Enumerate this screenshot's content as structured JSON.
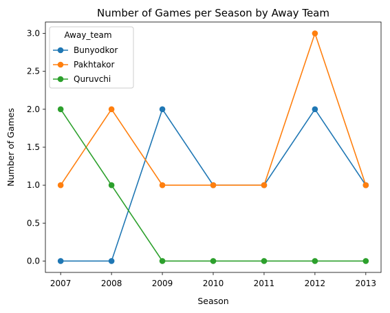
{
  "chart_data": {
    "type": "line",
    "title": "Number of Games per Season by Away Team",
    "xlabel": "Season",
    "ylabel": "Number of Games",
    "x": [
      2007,
      2008,
      2009,
      2010,
      2011,
      2012,
      2013
    ],
    "xlim": [
      2006.7,
      2013.3
    ],
    "ylim": [
      -0.15,
      3.15
    ],
    "yticks": [
      0.0,
      0.5,
      1.0,
      1.5,
      2.0,
      2.5,
      3.0
    ],
    "ytick_labels": [
      "0.0",
      "0.5",
      "1.0",
      "1.5",
      "2.0",
      "2.5",
      "3.0"
    ],
    "xtick_labels": [
      "2007",
      "2008",
      "2009",
      "2010",
      "2011",
      "2012",
      "2013"
    ],
    "grid": false,
    "legend": {
      "title": "Away_team",
      "placement": "top-left"
    },
    "series": [
      {
        "name": "Bunyodkor",
        "color": "#1f77b4",
        "values": [
          0,
          0,
          2,
          1,
          1,
          2,
          1
        ]
      },
      {
        "name": "Pakhtakor",
        "color": "#ff7f0e",
        "values": [
          1,
          2,
          1,
          1,
          1,
          3,
          1
        ]
      },
      {
        "name": "Quruvchi",
        "color": "#2ca02c",
        "values": [
          2,
          1,
          0,
          0,
          0,
          0,
          0
        ]
      }
    ]
  }
}
